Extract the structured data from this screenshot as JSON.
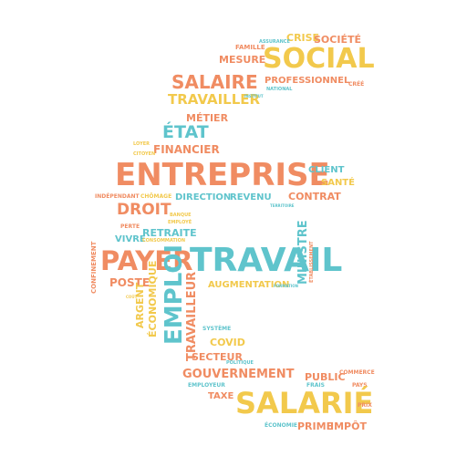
{
  "words": {
    "entreprise": "ENTREPRISE",
    "travail": "TRAVAIL",
    "social": "SOCIAL",
    "salarie": "SALARIÉ",
    "payer": "PAYER",
    "emploi": "EMPLOI",
    "salaire": "SALAIRE",
    "etat": "ÉTAT",
    "droit": "DROIT",
    "travailler": "TRAVAILLER",
    "gouvernement": "GOUVERNEMENT",
    "professionnel": "PROFESSIONNEL",
    "metier": "MÉTIER",
    "financier": "FINANCIER",
    "mesure": "MESURE",
    "crise": "CRISE",
    "societe": "SOCIÉTÉ",
    "client": "CLIENT",
    "sante": "SANTÉ",
    "contrat": "CONTRAT",
    "direction": "DIRECTION",
    "revenu": "REVENU",
    "retraite": "RETRAITE",
    "vivre": "VIVRE",
    "augmentation": "AUGMENTATION",
    "poste": "POSTE",
    "argent": "ARGENT",
    "economique": "ÉCONOMIQUE",
    "travailleur": "TRAVAILLEUR",
    "covid": "COVID",
    "secteur": "SECTEUR",
    "public": "PUBLIC",
    "taxe": "TAXE",
    "prime": "PRIME",
    "impot": "IMPÔT",
    "ministre": "MINISTRE",
    "chomage": "CHÔMAGE",
    "independant": "INDÉPENDANT",
    "famille": "FAMILLE",
    "cree": "CRÉÉ",
    "employeur": "EMPLOYEUR",
    "economie": "ÉCONOMIE",
    "commerce": "COMMERCE",
    "pays": "PAYS",
    "frais": "FRAIS",
    "prix": "PRIX",
    "confinement": "CONFINEMENT",
    "national": "NATIONAL",
    "politique": "POLITIQUE",
    "systeme": "SYSTÈME",
    "banque": "BANQUE",
    "perte": "PERTE",
    "employe": "EMPLOYÉ",
    "consommation": "CONSOMMATION",
    "assurance": "ASSURANCE",
    "loyer": "LOYER",
    "etablissement": "ÉTABLISSEMENT",
    "formation": "FORMATION",
    "cout": "COÛT",
    "territoire": "TERRITOIRE",
    "citoyen": "CITOYEN",
    "institut": "INSTITUT"
  }
}
